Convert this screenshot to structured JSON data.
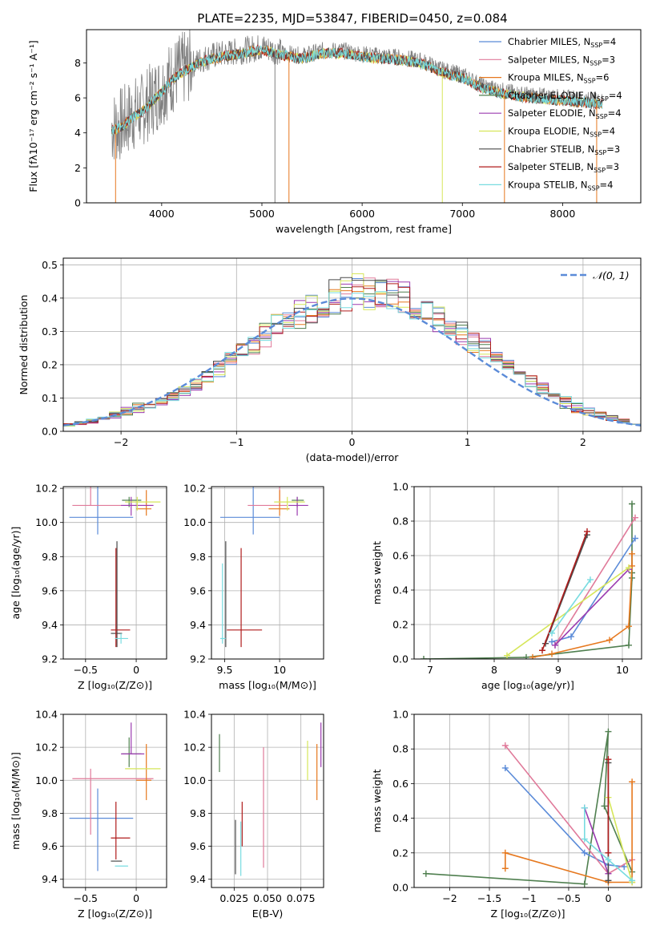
{
  "title": "PLATE=2235, MJD=53847, FIBERID=0450, z=0.084",
  "colors": {
    "chabrier_miles": "#5b8bd8",
    "salpeter_miles": "#e07a9a",
    "kroupa_miles": "#e6781e",
    "chabrier_elodie": "#4f7f4f",
    "salpeter_elodie": "#9b3bb0",
    "kroupa_elodie": "#d6e65a",
    "chabrier_stelib": "#4a4a4a",
    "salpeter_stelib": "#b01c1c",
    "kroupa_stelib": "#78dce0",
    "gaussian": "#5b8bd8"
  },
  "legend_spectrum": [
    {
      "label": "Chabrier MILES, N",
      "sub": "SSP",
      "tail": "=4",
      "color_key": "chabrier_miles"
    },
    {
      "label": "Salpeter MILES, N",
      "sub": "SSP",
      "tail": "=3",
      "color_key": "salpeter_miles"
    },
    {
      "label": "Kroupa MILES, N",
      "sub": "SSP",
      "tail": "=6",
      "color_key": "kroupa_miles"
    },
    {
      "label": "Chabrier ELODIE, N",
      "sub": "SSP",
      "tail": "=4",
      "color_key": "chabrier_elodie"
    },
    {
      "label": "Salpeter ELODIE, N",
      "sub": "SSP",
      "tail": "=4",
      "color_key": "salpeter_elodie"
    },
    {
      "label": "Kroupa ELODIE, N",
      "sub": "SSP",
      "tail": "=4",
      "color_key": "kroupa_elodie"
    },
    {
      "label": "Chabrier STELIB, N",
      "sub": "SSP",
      "tail": "=3",
      "color_key": "chabrier_stelib"
    },
    {
      "label": "Salpeter STELIB, N",
      "sub": "SSP",
      "tail": "=3",
      "color_key": "salpeter_stelib"
    },
    {
      "label": "Kroupa STELIB, N",
      "sub": "SSP",
      "tail": "=4",
      "color_key": "kroupa_stelib"
    }
  ],
  "chart_data": [
    {
      "type": "line",
      "xlabel": "wavelength [Angstrom, rest frame]",
      "ylabel": "Flux [fλ10⁻¹⁷ erg cm⁻² s⁻¹ A⁻¹]",
      "xlim": [
        3250,
        8780
      ],
      "ylim": [
        0,
        9.9
      ],
      "xticks": [
        4000,
        5000,
        6000,
        7000,
        8000
      ],
      "yticks": [
        0,
        2,
        4,
        6,
        8
      ],
      "continuum_x": [
        3500,
        3600,
        3700,
        3800,
        3900,
        4000,
        4100,
        4200,
        4300,
        4400,
        4500,
        4600,
        4800,
        5000,
        5200,
        5400,
        5600,
        5800,
        6000,
        6200,
        6400,
        6600,
        6800,
        7000,
        7200,
        7400,
        7600,
        7800,
        8000,
        8200,
        8400
      ],
      "continuum_y": [
        4.3,
        4.5,
        5.0,
        5.3,
        5.9,
        6.5,
        7.2,
        7.6,
        7.9,
        8.2,
        8.4,
        8.5,
        8.7,
        8.9,
        8.6,
        8.4,
        8.7,
        8.7,
        8.5,
        8.4,
        8.3,
        8.1,
        7.6,
        7.3,
        6.7,
        6.4,
        6.2,
        6.1,
        6.0,
        5.9,
        5.8
      ]
    },
    {
      "type": "line",
      "xlabel": "(data-model)/error",
      "ylabel": "Normed distribution",
      "xlim": [
        -2.5,
        2.5
      ],
      "ylim": [
        0,
        0.52
      ],
      "xticks": [
        -2,
        -1,
        0,
        1,
        2
      ],
      "yticks": [
        0.0,
        0.1,
        0.2,
        0.3,
        0.4,
        0.5
      ],
      "series": [
        {
          "name": "𝒩(0, 1)",
          "mu": 0,
          "sigma": 1
        }
      ]
    },
    {
      "type": "scatter",
      "xlabel": "Z [log₁₀(Z/Z⊙)]",
      "ylabel": "age  [log₁₀(age/yr)]",
      "xlim": [
        -0.72,
        0.3
      ],
      "ylim": [
        9.2,
        10.21
      ],
      "xticks": [
        -0.5,
        0.0
      ],
      "yticks": [
        9.2,
        9.4,
        9.6,
        9.8,
        10.0,
        10.2
      ],
      "points": [
        {
          "key": "chabrier_miles",
          "x": -0.38,
          "xerr": [
            0.28,
            0.35
          ],
          "y": 10.03,
          "yerr": [
            0.1,
            0.76
          ]
        },
        {
          "key": "salpeter_miles",
          "x": -0.45,
          "xerr": [
            0.18,
            0.62
          ],
          "y": 10.1,
          "yerr": [
            0.0,
            0.83
          ]
        },
        {
          "key": "kroupa_miles",
          "x": 0.1,
          "xerr": [
            0.1,
            0.05
          ],
          "y": 10.08,
          "yerr": [
            0.04,
            0.11
          ]
        },
        {
          "key": "chabrier_elodie",
          "x": -0.07,
          "xerr": [
            0.07,
            0.12
          ],
          "y": 10.13,
          "yerr": [
            0.04,
            0.02
          ]
        },
        {
          "key": "salpeter_elodie",
          "x": -0.05,
          "xerr": [
            0.1,
            0.22
          ],
          "y": 10.1,
          "yerr": [
            0.06,
            0.05
          ]
        },
        {
          "key": "kroupa_elodie",
          "x": 0.01,
          "xerr": [
            0.12,
            0.23
          ],
          "y": 10.12,
          "yerr": [
            0.05,
            0.03
          ]
        },
        {
          "key": "chabrier_stelib",
          "x": -0.19,
          "xerr": [
            0.06,
            0.05
          ],
          "y": 9.35,
          "yerr": [
            0.08,
            0.54
          ]
        },
        {
          "key": "salpeter_stelib",
          "x": -0.2,
          "xerr": [
            0.05,
            0.14
          ],
          "y": 9.37,
          "yerr": [
            0.1,
            0.48
          ]
        },
        {
          "key": "kroupa_stelib",
          "x": -0.15,
          "xerr": [
            0.06,
            0.07
          ],
          "y": 9.32,
          "yerr": [
            0.03,
            0.03
          ]
        }
      ]
    },
    {
      "type": "scatter",
      "xlabel": "mass [log₁₀(M/M⊙)]",
      "ylabel": "",
      "xlim": [
        9.38,
        10.4
      ],
      "ylim": [
        9.2,
        10.21
      ],
      "xticks": [
        9.5,
        10.0
      ],
      "yticks": [
        9.2,
        9.4,
        9.6,
        9.8,
        10.0,
        10.2
      ],
      "points": [
        {
          "key": "chabrier_miles",
          "x": 9.76,
          "xerr": [
            0.3,
            0.24
          ],
          "y": 10.03,
          "yerr": [
            0.1,
            0.76
          ]
        },
        {
          "key": "salpeter_miles",
          "x": 10.0,
          "xerr": [
            0.29,
            0.07
          ],
          "y": 10.1,
          "yerr": [
            0.0,
            0.83
          ]
        },
        {
          "key": "kroupa_miles",
          "x": 10.0,
          "xerr": [
            0.1,
            0.09
          ],
          "y": 10.08,
          "yerr": [
            0.04,
            0.11
          ]
        },
        {
          "key": "chabrier_elodie",
          "x": 10.16,
          "xerr": [
            0.05,
            0.06
          ],
          "y": 10.13,
          "yerr": [
            0.04,
            0.02
          ]
        },
        {
          "key": "salpeter_elodie",
          "x": 10.16,
          "xerr": [
            0.08,
            0.1
          ],
          "y": 10.1,
          "yerr": [
            0.06,
            0.05
          ]
        },
        {
          "key": "kroupa_elodie",
          "x": 10.07,
          "xerr": [
            0.12,
            0.16
          ],
          "y": 10.12,
          "yerr": [
            0.05,
            0.03
          ]
        },
        {
          "key": "chabrier_stelib",
          "x": 9.51,
          "xerr": [
            0.0,
            0.0
          ],
          "y": 9.35,
          "yerr": [
            0.08,
            0.54
          ]
        },
        {
          "key": "salpeter_stelib",
          "x": 9.65,
          "xerr": [
            0.13,
            0.19
          ],
          "y": 9.37,
          "yerr": [
            0.1,
            0.48
          ]
        },
        {
          "key": "kroupa_stelib",
          "x": 9.48,
          "xerr": [
            0.02,
            0.03
          ],
          "y": 9.32,
          "yerr": [
            0.03,
            0.44
          ]
        }
      ]
    },
    {
      "type": "line",
      "xlabel": "age  [log₁₀(age/yr)]",
      "ylabel": "mass weight",
      "xlim": [
        6.75,
        10.3
      ],
      "ylim": [
        0,
        1.0
      ],
      "xticks": [
        7,
        8,
        9,
        10
      ],
      "yticks": [
        0.0,
        0.2,
        0.4,
        0.6,
        0.8,
        1.0
      ],
      "series": [
        {
          "key": "chabrier_elodie",
          "x": [
            6.9,
            8.5,
            10.1,
            10.15,
            10.15,
            10.15
          ],
          "y": [
            0.0,
            0.01,
            0.08,
            0.47,
            0.5,
            0.9
          ]
        },
        {
          "key": "kroupa_miles",
          "x": [
            8.6,
            8.9,
            9.8,
            10.1,
            10.15,
            10.15
          ],
          "y": [
            0.01,
            0.03,
            0.11,
            0.19,
            0.54,
            0.61
          ]
        },
        {
          "key": "chabrier_miles",
          "x": [
            8.9,
            9.2,
            10.2
          ],
          "y": [
            0.1,
            0.13,
            0.7
          ]
        },
        {
          "key": "salpeter_miles",
          "x": [
            8.95,
            10.2
          ],
          "y": [
            0.08,
            0.82
          ]
        },
        {
          "key": "salpeter_elodie",
          "x": [
            8.95,
            10.1
          ],
          "y": [
            0.08,
            0.52
          ]
        },
        {
          "key": "kroupa_elodie",
          "x": [
            8.2,
            10.1
          ],
          "y": [
            0.02,
            0.53
          ]
        },
        {
          "key": "chabrier_stelib",
          "x": [
            8.8,
            9.45
          ],
          "y": [
            0.09,
            0.72
          ]
        },
        {
          "key": "salpeter_stelib",
          "x": [
            8.75,
            9.45
          ],
          "y": [
            0.05,
            0.74
          ]
        },
        {
          "key": "kroupa_stelib",
          "x": [
            8.9,
            9.5
          ],
          "y": [
            0.15,
            0.46
          ]
        }
      ]
    },
    {
      "type": "scatter",
      "xlabel": "Z [log₁₀(Z/Z⊙)]",
      "ylabel": "mass [log₁₀(M/M⊙)]",
      "xlim": [
        -0.72,
        0.3
      ],
      "ylim": [
        9.35,
        10.4
      ],
      "xticks": [
        -0.5,
        0.0
      ],
      "yticks": [
        9.4,
        9.6,
        9.8,
        10.0,
        10.2,
        10.4
      ],
      "points": [
        {
          "key": "chabrier_miles",
          "x": -0.38,
          "xerr": [
            0.28,
            0.35
          ],
          "y": 9.77,
          "yerr": [
            0.32,
            0.18
          ]
        },
        {
          "key": "salpeter_miles",
          "x": -0.45,
          "xerr": [
            0.18,
            0.62
          ],
          "y": 10.01,
          "yerr": [
            0.34,
            0.06
          ]
        },
        {
          "key": "kroupa_miles",
          "x": 0.1,
          "xerr": [
            0.1,
            0.05
          ],
          "y": 10.0,
          "yerr": [
            0.12,
            0.22
          ]
        },
        {
          "key": "chabrier_elodie",
          "x": -0.07,
          "xerr": [
            0.07,
            0.12
          ],
          "y": 10.16,
          "yerr": [
            0.08,
            0.1
          ]
        },
        {
          "key": "salpeter_elodie",
          "x": -0.05,
          "xerr": [
            0.1,
            0.13
          ],
          "y": 10.16,
          "yerr": [
            0.0,
            0.19
          ]
        },
        {
          "key": "kroupa_elodie",
          "x": 0.01,
          "xerr": [
            0.12,
            0.23
          ],
          "y": 10.07,
          "yerr": [
            0.0,
            0.0
          ]
        },
        {
          "key": "chabrier_stelib",
          "x": -0.19,
          "xerr": [
            0.06,
            0.05
          ],
          "y": 9.51,
          "yerr": [
            0.0,
            0.0
          ]
        },
        {
          "key": "salpeter_stelib",
          "x": -0.2,
          "xerr": [
            0.05,
            0.14
          ],
          "y": 9.65,
          "yerr": [
            0.13,
            0.22
          ]
        },
        {
          "key": "kroupa_stelib",
          "x": -0.15,
          "xerr": [
            0.06,
            0.07
          ],
          "y": 9.48,
          "yerr": [
            0.0,
            0.0
          ]
        }
      ]
    },
    {
      "type": "scatter",
      "xlabel": "E(B-V)",
      "ylabel": "",
      "xlim": [
        0.008,
        0.092
      ],
      "ylim": [
        9.35,
        10.4
      ],
      "xticks": [
        0.025,
        0.05,
        0.075
      ],
      "xticklabels": [
        "0.025",
        "0.050",
        "0.075"
      ],
      "yticks": [
        9.4,
        9.6,
        9.8,
        10.0,
        10.2,
        10.4
      ],
      "bars": [
        {
          "key": "chabrier_elodie",
          "x": 0.014,
          "y0": 10.05,
          "y1": 10.28
        },
        {
          "key": "chabrier_stelib",
          "x": 0.026,
          "y0": 9.43,
          "y1": 9.76
        },
        {
          "key": "kroupa_stelib",
          "x": 0.03,
          "y0": 9.42,
          "y1": 9.75
        },
        {
          "key": "salpeter_stelib",
          "x": 0.031,
          "y0": 9.6,
          "y1": 9.87
        },
        {
          "key": "salpeter_miles",
          "x": 0.047,
          "y0": 9.47,
          "y1": 10.2
        },
        {
          "key": "kroupa_elodie",
          "x": 0.08,
          "y0": 10.0,
          "y1": 10.24
        },
        {
          "key": "kroupa_miles",
          "x": 0.087,
          "y0": 9.88,
          "y1": 10.22
        },
        {
          "key": "salpeter_elodie",
          "x": 0.09,
          "y0": 10.08,
          "y1": 10.35
        }
      ]
    },
    {
      "type": "line",
      "xlabel": "Z [log₁₀(Z/Z⊙)]",
      "ylabel": "mass weight",
      "xlim": [
        -2.45,
        0.42
      ],
      "ylim": [
        0,
        1.0
      ],
      "xticks": [
        -2.0,
        -1.5,
        -1.0,
        -0.5,
        0.0
      ],
      "yticks": [
        0.0,
        0.2,
        0.4,
        0.6,
        0.8,
        1.0
      ],
      "series": [
        {
          "key": "chabrier_elodie",
          "x": [
            -2.3,
            -0.3,
            0.0,
            -0.05,
            0.3
          ],
          "y": [
            0.08,
            0.02,
            0.9,
            0.47,
            0.09
          ]
        },
        {
          "key": "chabrier_miles",
          "x": [
            -1.3,
            -0.3,
            0.0,
            0.2
          ],
          "y": [
            0.69,
            0.2,
            0.13,
            0.12
          ]
        },
        {
          "key": "salpeter_miles",
          "x": [
            -1.3,
            0.0,
            0.3
          ],
          "y": [
            0.82,
            0.08,
            0.16
          ]
        },
        {
          "key": "kroupa_miles",
          "x": [
            -1.3,
            -1.3,
            0.0,
            0.3,
            0.3
          ],
          "y": [
            0.11,
            0.2,
            0.03,
            0.03,
            0.61
          ]
        },
        {
          "key": "salpeter_elodie",
          "x": [
            -0.3,
            0.0
          ],
          "y": [
            0.46,
            0.08
          ]
        },
        {
          "key": "kroupa_elodie",
          "x": [
            0.0,
            0.3
          ],
          "y": [
            0.52,
            0.03
          ]
        },
        {
          "key": "chabrier_stelib",
          "x": [
            0.0,
            0.0
          ],
          "y": [
            0.72,
            0.04
          ]
        },
        {
          "key": "salpeter_stelib",
          "x": [
            0.0,
            0.0
          ],
          "y": [
            0.74,
            0.2
          ]
        },
        {
          "key": "kroupa_stelib",
          "x": [
            -0.3,
            -0.3,
            0.0,
            0.3
          ],
          "y": [
            0.46,
            0.28,
            0.16,
            0.04
          ]
        }
      ]
    }
  ]
}
